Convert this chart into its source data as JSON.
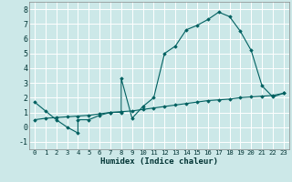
{
  "title": "",
  "xlabel": "Humidex (Indice chaleur)",
  "background_color": "#cce8e8",
  "grid_color": "#ffffff",
  "line_color": "#006060",
  "xlim": [
    -0.5,
    23.5
  ],
  "ylim": [
    -1.5,
    8.5
  ],
  "xticks": [
    0,
    1,
    2,
    3,
    4,
    5,
    6,
    7,
    8,
    9,
    10,
    11,
    12,
    13,
    14,
    15,
    16,
    17,
    18,
    19,
    20,
    21,
    22,
    23
  ],
  "yticks": [
    -1,
    0,
    1,
    2,
    3,
    4,
    5,
    6,
    7,
    8
  ],
  "curve1_x": [
    0,
    1,
    2,
    3,
    4,
    4,
    5,
    6,
    7,
    8,
    8,
    9,
    10,
    11,
    12,
    13,
    14,
    15,
    16,
    17,
    18,
    19,
    20,
    21,
    22,
    23
  ],
  "curve1_y": [
    1.7,
    1.1,
    0.5,
    0.0,
    -0.4,
    0.5,
    0.5,
    0.8,
    1.0,
    1.0,
    3.3,
    0.6,
    1.4,
    2.0,
    5.0,
    5.5,
    6.6,
    6.9,
    7.3,
    7.8,
    7.5,
    6.5,
    5.2,
    2.8,
    2.05,
    2.3
  ],
  "curve2_x": [
    0,
    1,
    2,
    3,
    4,
    5,
    6,
    7,
    8,
    9,
    10,
    11,
    12,
    13,
    14,
    15,
    16,
    17,
    18,
    19,
    20,
    21,
    22,
    23
  ],
  "curve2_y": [
    0.5,
    0.6,
    0.65,
    0.7,
    0.75,
    0.8,
    0.9,
    1.0,
    1.05,
    1.1,
    1.2,
    1.3,
    1.4,
    1.5,
    1.6,
    1.7,
    1.8,
    1.85,
    1.9,
    2.0,
    2.05,
    2.1,
    2.15,
    2.3
  ]
}
